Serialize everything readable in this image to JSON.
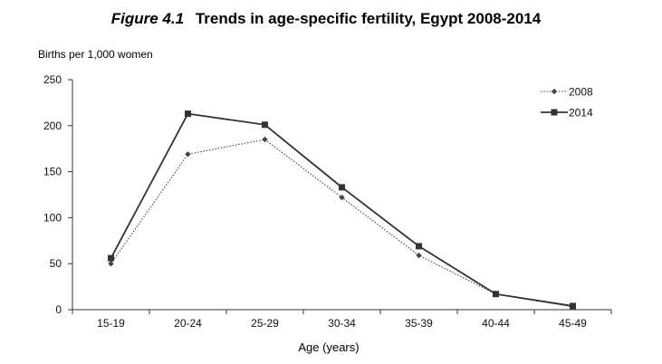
{
  "chart_data": {
    "type": "line",
    "title_label": "Figure 4.1",
    "title": "Trends in age-specific fertility, Egypt 2008-2014",
    "xlabel": "Age (years)",
    "ylabel": "Births per 1,000 women",
    "categories": [
      "15-19",
      "20-24",
      "25-29",
      "30-34",
      "35-39",
      "40-44",
      "45-49"
    ],
    "ylim": [
      0,
      250
    ],
    "yticks": [
      0,
      50,
      100,
      150,
      200,
      250
    ],
    "grid": false,
    "legend_position": "top-right",
    "series": [
      {
        "name": "2008",
        "values": [
          50,
          169,
          185,
          122,
          59,
          17,
          3
        ],
        "color": "#444444",
        "style": "dotted",
        "marker": "diamond"
      },
      {
        "name": "2014",
        "values": [
          56,
          213,
          201,
          133,
          69,
          17,
          4
        ],
        "color": "#333333",
        "style": "solid",
        "marker": "square"
      }
    ]
  }
}
